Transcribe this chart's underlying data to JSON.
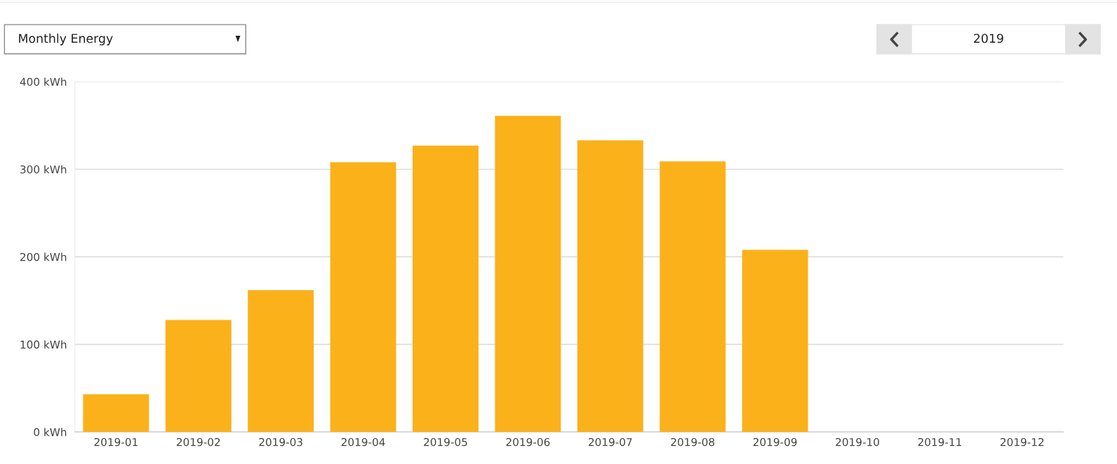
{
  "chart_data": {
    "type": "bar",
    "categories": [
      "2019-01",
      "2019-02",
      "2019-03",
      "2019-04",
      "2019-05",
      "2019-06",
      "2019-07",
      "2019-08",
      "2019-09",
      "2019-10",
      "2019-11",
      "2019-12"
    ],
    "values": [
      43,
      128,
      162,
      308,
      327,
      361,
      333,
      309,
      208,
      null,
      null,
      null
    ],
    "color": "#fbb11a",
    "ylim": [
      0,
      400
    ],
    "yticks": [
      {
        "value": 0,
        "label": "0 kWh"
      },
      {
        "value": 100,
        "label": "100 kWh"
      },
      {
        "value": 200,
        "label": "200 kWh"
      },
      {
        "value": 300,
        "label": "300 kWh"
      },
      {
        "value": 400,
        "label": "400 kWh"
      }
    ],
    "grid": "y",
    "annotations": [
      "Monthly Energy",
      "2019"
    ]
  }
}
